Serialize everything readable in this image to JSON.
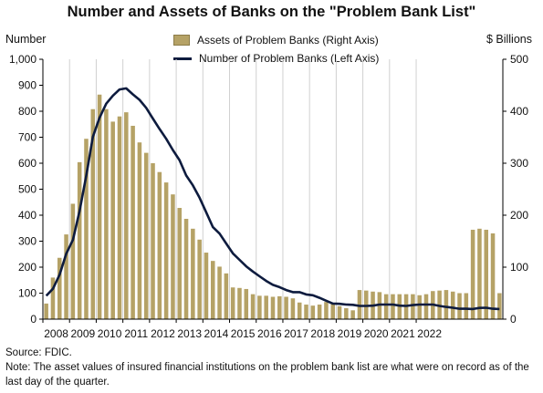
{
  "chart_data": {
    "type": "bar",
    "title": "Number and Assets of Banks on the \"Problem Bank List\"",
    "left_axis_label": "Number",
    "right_axis_label": "$ Billions",
    "left_ylim": [
      0,
      1000
    ],
    "right_ylim": [
      0,
      500
    ],
    "left_ticks": [
      "0",
      "100",
      "200",
      "300",
      "400",
      "500",
      "600",
      "700",
      "800",
      "900",
      "1,000"
    ],
    "right_ticks": [
      "0",
      "100",
      "200",
      "300",
      "400",
      "500"
    ],
    "x_tick_labels": [
      "2008",
      "2009",
      "2010",
      "2011",
      "2012",
      "2013",
      "2014",
      "2015",
      "2016",
      "2017",
      "2018",
      "2019",
      "2020",
      "2021",
      "2022"
    ],
    "grid": "vertical",
    "legend_placement": "top-center",
    "series": [
      {
        "name": "Assets of Problem Banks (Right Axis)",
        "axis": "right",
        "kind": "bar",
        "color": "#b5a266",
        "values": [
          30,
          80,
          118,
          163,
          222,
          302,
          347,
          404,
          432,
          404,
          380,
          390,
          398,
          372,
          340,
          320,
          300,
          283,
          263,
          240,
          214,
          193,
          174,
          153,
          128,
          112,
          101,
          88,
          61,
          60,
          58,
          48,
          45,
          45,
          43,
          44,
          43,
          40,
          32,
          28,
          26,
          28,
          33,
          30,
          25,
          21,
          17,
          56,
          55,
          53,
          52,
          48,
          48,
          48,
          48,
          48,
          46,
          48,
          54,
          55,
          56,
          53,
          50,
          50,
          172,
          174,
          172,
          165,
          50
        ]
      },
      {
        "name": "Number of Problem Banks (Left Axis)",
        "axis": "left",
        "kind": "line",
        "color": "#0d1b3e",
        "values": [
          90,
          117,
          171,
          252,
          305,
          416,
          552,
          702,
          775,
          829,
          860,
          884,
          888,
          865,
          844,
          813,
          772,
          732,
          694,
          651,
          612,
          553,
          515,
          467,
          411,
          354,
          329,
          291,
          253,
          228,
          203,
          183,
          165,
          147,
          132,
          123,
          112,
          104,
          104,
          95,
          92,
          82,
          71,
          60,
          59,
          56,
          55,
          51,
          51,
          52,
          56,
          56,
          56,
          52,
          51,
          54,
          56,
          56,
          56,
          51,
          47,
          44,
          40,
          40,
          39,
          43,
          44,
          40,
          39
        ]
      }
    ]
  },
  "notes": {
    "source": "Source: FDIC.",
    "note": "Note: The asset values of insured financial institutions on the problem bank list are what were on record as of the last day of the quarter."
  }
}
